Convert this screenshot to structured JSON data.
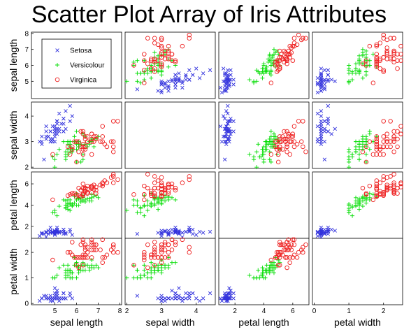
{
  "title": "Scatter Plot Array of Iris Attributes",
  "chart_data": {
    "type": "scatter",
    "title": "Scatter Plot Array of Iris Attributes",
    "variables": [
      "sepal length",
      "sepal width",
      "petal length",
      "petal width"
    ],
    "ranges": [
      [
        4,
        8
      ],
      [
        2,
        4.5
      ],
      [
        1,
        7
      ],
      [
        0,
        2.5
      ]
    ],
    "ticks": [
      [
        5,
        6,
        7,
        8
      ],
      [
        2,
        3,
        4
      ],
      [
        2,
        4,
        6
      ],
      [
        0,
        1,
        2
      ]
    ],
    "x_tick_ranges": [
      [
        4,
        8
      ],
      [
        2,
        4.5
      ],
      [
        1,
        7
      ],
      [
        0,
        2.5
      ]
    ],
    "y_tick_ranges": [
      [
        4,
        8
      ],
      [
        2,
        4.5
      ],
      [
        1,
        7
      ],
      [
        0,
        2.5
      ]
    ],
    "y_ticks": [
      [
        5,
        6,
        7,
        8
      ],
      [
        2,
        3,
        4
      ],
      [
        2,
        4,
        6
      ],
      [
        0,
        1,
        2
      ]
    ],
    "x_ticks": [
      [
        5,
        6,
        7,
        8
      ],
      [
        2,
        3,
        4
      ],
      [
        2,
        4,
        6
      ],
      [
        0,
        1,
        2
      ]
    ],
    "legend": {
      "position": "top-left panel",
      "entries": [
        "Setosa",
        "Versicolour",
        "Virginica"
      ]
    },
    "species_colors": {
      "Setosa": "#3333dd",
      "Versicolour": "#00dd00",
      "Virginica": "#ee2222"
    },
    "markers": {
      "Setosa": "x",
      "Versicolour": "+",
      "Virginica": "o"
    },
    "diagonal": "empty",
    "series": [
      {
        "name": "Setosa",
        "points": [
          [
            5.1,
            3.5,
            1.4,
            0.2
          ],
          [
            4.9,
            3.0,
            1.4,
            0.2
          ],
          [
            4.7,
            3.2,
            1.3,
            0.2
          ],
          [
            4.6,
            3.1,
            1.5,
            0.2
          ],
          [
            5.0,
            3.6,
            1.4,
            0.2
          ],
          [
            5.4,
            3.9,
            1.7,
            0.4
          ],
          [
            4.6,
            3.4,
            1.4,
            0.3
          ],
          [
            5.0,
            3.4,
            1.5,
            0.2
          ],
          [
            4.4,
            2.9,
            1.4,
            0.2
          ],
          [
            4.9,
            3.1,
            1.5,
            0.1
          ],
          [
            5.4,
            3.7,
            1.5,
            0.2
          ],
          [
            4.8,
            3.4,
            1.6,
            0.2
          ],
          [
            4.8,
            3.0,
            1.4,
            0.1
          ],
          [
            4.3,
            3.0,
            1.1,
            0.1
          ],
          [
            5.8,
            4.0,
            1.2,
            0.2
          ],
          [
            5.7,
            4.4,
            1.5,
            0.4
          ],
          [
            5.4,
            3.9,
            1.3,
            0.4
          ],
          [
            5.1,
            3.5,
            1.4,
            0.3
          ],
          [
            5.7,
            3.8,
            1.7,
            0.3
          ],
          [
            5.1,
            3.8,
            1.5,
            0.3
          ],
          [
            5.4,
            3.4,
            1.7,
            0.2
          ],
          [
            5.1,
            3.7,
            1.5,
            0.4
          ],
          [
            4.6,
            3.6,
            1.0,
            0.2
          ],
          [
            5.1,
            3.3,
            1.7,
            0.5
          ],
          [
            4.8,
            3.4,
            1.9,
            0.2
          ],
          [
            5.0,
            3.0,
            1.6,
            0.2
          ],
          [
            5.0,
            3.4,
            1.6,
            0.4
          ],
          [
            5.2,
            3.5,
            1.5,
            0.2
          ],
          [
            5.2,
            3.4,
            1.4,
            0.2
          ],
          [
            4.7,
            3.2,
            1.6,
            0.2
          ],
          [
            4.8,
            3.1,
            1.6,
            0.2
          ],
          [
            5.4,
            3.4,
            1.5,
            0.4
          ],
          [
            5.2,
            4.1,
            1.5,
            0.1
          ],
          [
            5.5,
            4.2,
            1.4,
            0.2
          ],
          [
            4.9,
            3.1,
            1.5,
            0.2
          ],
          [
            5.0,
            3.2,
            1.2,
            0.2
          ],
          [
            5.5,
            3.5,
            1.3,
            0.2
          ],
          [
            4.9,
            3.6,
            1.4,
            0.1
          ],
          [
            4.4,
            3.0,
            1.3,
            0.2
          ],
          [
            5.1,
            3.4,
            1.5,
            0.2
          ],
          [
            5.0,
            3.5,
            1.3,
            0.3
          ],
          [
            4.5,
            2.3,
            1.3,
            0.3
          ],
          [
            4.4,
            3.2,
            1.3,
            0.2
          ],
          [
            5.0,
            3.5,
            1.6,
            0.6
          ],
          [
            5.1,
            3.8,
            1.9,
            0.4
          ],
          [
            4.8,
            3.0,
            1.4,
            0.3
          ],
          [
            5.1,
            3.8,
            1.6,
            0.2
          ],
          [
            4.6,
            3.2,
            1.4,
            0.2
          ],
          [
            5.3,
            3.7,
            1.5,
            0.2
          ],
          [
            5.0,
            3.3,
            1.4,
            0.2
          ]
        ]
      },
      {
        "name": "Versicolour",
        "points": [
          [
            7.0,
            3.2,
            4.7,
            1.4
          ],
          [
            6.4,
            3.2,
            4.5,
            1.5
          ],
          [
            6.9,
            3.1,
            4.9,
            1.5
          ],
          [
            5.5,
            2.3,
            4.0,
            1.3
          ],
          [
            6.5,
            2.8,
            4.6,
            1.5
          ],
          [
            5.7,
            2.8,
            4.5,
            1.3
          ],
          [
            6.3,
            3.3,
            4.7,
            1.6
          ],
          [
            4.9,
            2.4,
            3.3,
            1.0
          ],
          [
            6.6,
            2.9,
            4.6,
            1.3
          ],
          [
            5.2,
            2.7,
            3.9,
            1.4
          ],
          [
            5.0,
            2.0,
            3.5,
            1.0
          ],
          [
            5.9,
            3.0,
            4.2,
            1.5
          ],
          [
            6.0,
            2.2,
            4.0,
            1.0
          ],
          [
            6.1,
            2.9,
            4.7,
            1.4
          ],
          [
            5.6,
            2.9,
            3.6,
            1.3
          ],
          [
            6.7,
            3.1,
            4.4,
            1.4
          ],
          [
            5.6,
            3.0,
            4.5,
            1.5
          ],
          [
            5.8,
            2.7,
            4.1,
            1.0
          ],
          [
            6.2,
            2.2,
            4.5,
            1.5
          ],
          [
            5.6,
            2.5,
            3.9,
            1.1
          ],
          [
            5.9,
            3.2,
            4.8,
            1.8
          ],
          [
            6.1,
            2.8,
            4.0,
            1.3
          ],
          [
            6.3,
            2.5,
            4.9,
            1.5
          ],
          [
            6.1,
            2.8,
            4.7,
            1.2
          ],
          [
            6.4,
            2.9,
            4.3,
            1.3
          ],
          [
            6.6,
            3.0,
            4.4,
            1.4
          ],
          [
            6.8,
            2.8,
            4.8,
            1.4
          ],
          [
            6.7,
            3.0,
            5.0,
            1.7
          ],
          [
            6.0,
            2.9,
            4.5,
            1.5
          ],
          [
            5.7,
            2.6,
            3.5,
            1.0
          ],
          [
            5.5,
            2.4,
            3.8,
            1.1
          ],
          [
            5.5,
            2.4,
            3.7,
            1.0
          ],
          [
            5.8,
            2.7,
            3.9,
            1.2
          ],
          [
            6.0,
            2.7,
            5.1,
            1.6
          ],
          [
            5.4,
            3.0,
            4.5,
            1.5
          ],
          [
            6.0,
            3.4,
            4.5,
            1.6
          ],
          [
            6.7,
            3.1,
            4.7,
            1.5
          ],
          [
            6.3,
            2.3,
            4.4,
            1.3
          ],
          [
            5.6,
            3.0,
            4.1,
            1.3
          ],
          [
            5.5,
            2.5,
            4.0,
            1.3
          ],
          [
            5.5,
            2.6,
            4.4,
            1.2
          ],
          [
            6.1,
            3.0,
            4.6,
            1.4
          ],
          [
            5.8,
            2.6,
            4.0,
            1.2
          ],
          [
            5.0,
            2.3,
            3.3,
            1.0
          ],
          [
            5.6,
            2.7,
            4.2,
            1.3
          ],
          [
            5.7,
            3.0,
            4.2,
            1.2
          ],
          [
            5.7,
            2.9,
            4.2,
            1.3
          ],
          [
            6.2,
            2.9,
            4.3,
            1.3
          ],
          [
            5.1,
            2.5,
            3.0,
            1.1
          ],
          [
            5.7,
            2.8,
            4.1,
            1.3
          ]
        ]
      },
      {
        "name": "Virginica",
        "points": [
          [
            6.3,
            3.3,
            6.0,
            2.5
          ],
          [
            5.8,
            2.7,
            5.1,
            1.9
          ],
          [
            7.1,
            3.0,
            5.9,
            2.1
          ],
          [
            6.3,
            2.9,
            5.6,
            1.8
          ],
          [
            6.5,
            3.0,
            5.8,
            2.2
          ],
          [
            7.6,
            3.0,
            6.6,
            2.1
          ],
          [
            4.9,
            2.5,
            4.5,
            1.7
          ],
          [
            7.3,
            2.9,
            6.3,
            1.8
          ],
          [
            6.7,
            2.5,
            5.8,
            1.8
          ],
          [
            7.2,
            3.6,
            6.1,
            2.5
          ],
          [
            6.5,
            3.2,
            5.1,
            2.0
          ],
          [
            6.4,
            2.7,
            5.3,
            1.9
          ],
          [
            6.8,
            3.0,
            5.5,
            2.1
          ],
          [
            5.7,
            2.5,
            5.0,
            2.0
          ],
          [
            5.8,
            2.8,
            5.1,
            2.4
          ],
          [
            6.4,
            3.2,
            5.3,
            2.3
          ],
          [
            6.5,
            3.0,
            5.5,
            1.8
          ],
          [
            7.7,
            3.8,
            6.7,
            2.2
          ],
          [
            7.7,
            2.6,
            6.9,
            2.3
          ],
          [
            6.0,
            2.2,
            5.0,
            1.5
          ],
          [
            6.9,
            3.2,
            5.7,
            2.3
          ],
          [
            5.6,
            2.8,
            4.9,
            2.0
          ],
          [
            7.7,
            2.8,
            6.7,
            2.0
          ],
          [
            6.3,
            2.7,
            4.9,
            1.8
          ],
          [
            6.7,
            3.3,
            5.7,
            2.1
          ],
          [
            7.2,
            3.2,
            6.0,
            1.8
          ],
          [
            6.2,
            2.8,
            4.8,
            1.8
          ],
          [
            6.1,
            3.0,
            4.9,
            1.8
          ],
          [
            6.4,
            2.8,
            5.6,
            2.1
          ],
          [
            7.2,
            3.0,
            5.8,
            1.6
          ],
          [
            7.4,
            2.8,
            6.1,
            1.9
          ],
          [
            7.9,
            3.8,
            6.4,
            2.0
          ],
          [
            6.4,
            2.8,
            5.6,
            2.2
          ],
          [
            6.3,
            2.8,
            5.1,
            1.5
          ],
          [
            6.1,
            2.6,
            5.6,
            1.4
          ],
          [
            7.7,
            3.0,
            6.1,
            2.3
          ],
          [
            6.3,
            3.4,
            5.6,
            2.4
          ],
          [
            6.4,
            3.1,
            5.5,
            1.8
          ],
          [
            6.0,
            3.0,
            4.8,
            1.8
          ],
          [
            6.9,
            3.1,
            5.4,
            2.1
          ],
          [
            6.7,
            3.1,
            5.6,
            2.4
          ],
          [
            6.9,
            3.1,
            5.1,
            2.3
          ],
          [
            5.8,
            2.7,
            5.1,
            1.9
          ],
          [
            6.8,
            3.2,
            5.9,
            2.3
          ],
          [
            6.7,
            3.3,
            5.7,
            2.5
          ],
          [
            6.7,
            3.0,
            5.2,
            2.3
          ],
          [
            6.3,
            2.5,
            5.0,
            1.9
          ],
          [
            6.5,
            3.0,
            5.2,
            2.0
          ],
          [
            6.2,
            3.4,
            5.4,
            2.3
          ],
          [
            5.9,
            3.0,
            5.1,
            1.8
          ]
        ]
      }
    ]
  }
}
